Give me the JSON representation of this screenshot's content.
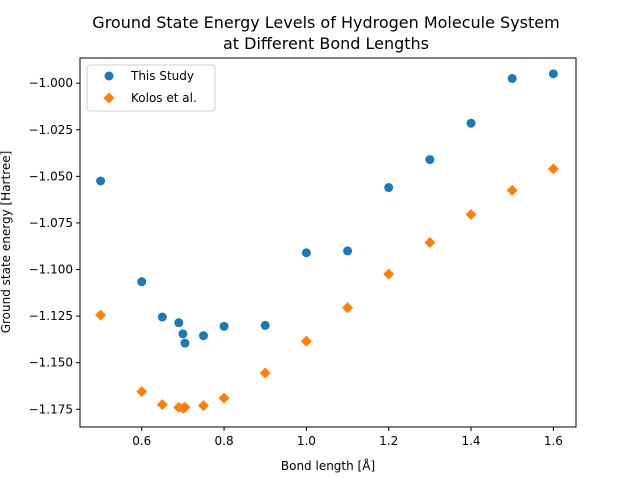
{
  "chart_data": {
    "type": "scatter",
    "title_line1": "Ground State Energy Levels of Hydrogen Molecule System",
    "title_line2": "at Different Bond Lengths",
    "xlabel": "Bond length [Å]",
    "ylabel": "Ground state energy [Hartree]",
    "xlim": [
      0.45,
      1.655
    ],
    "ylim": [
      -1.1845,
      -0.9865
    ],
    "xticks": [
      0.6,
      0.8,
      1.0,
      1.2,
      1.4,
      1.6
    ],
    "xtick_labels": [
      "0.6",
      "0.8",
      "1.0",
      "1.2",
      "1.4",
      "1.6"
    ],
    "yticks": [
      -1.175,
      -1.15,
      -1.125,
      -1.1,
      -1.075,
      -1.05,
      -1.025,
      -1.0
    ],
    "ytick_labels": [
      "−1.175",
      "−1.150",
      "−1.125",
      "−1.100",
      "−1.075",
      "−1.050",
      "−1.025",
      "−1.000"
    ],
    "grid": false,
    "legend_position": "upper-left",
    "series": [
      {
        "name": "This Study",
        "marker": "circle",
        "color": "#1f77b4",
        "x": [
          0.5,
          0.6,
          0.65,
          0.69,
          0.7,
          0.705,
          0.75,
          0.8,
          0.9,
          1.0,
          1.1,
          1.2,
          1.3,
          1.4,
          1.5,
          1.6
        ],
        "y": [
          -1.0525,
          -1.1065,
          -1.1255,
          -1.1285,
          -1.1345,
          -1.1395,
          -1.1355,
          -1.1305,
          -1.13,
          -1.091,
          -1.09,
          -1.056,
          -1.041,
          -1.0215,
          -0.9975,
          -0.995
        ]
      },
      {
        "name": "Kolos et al.",
        "marker": "diamond",
        "color": "#ff7f0e",
        "x": [
          0.5,
          0.6,
          0.65,
          0.69,
          0.7,
          0.705,
          0.75,
          0.8,
          0.9,
          1.0,
          1.1,
          1.2,
          1.3,
          1.4,
          1.5,
          1.6
        ],
        "y": [
          -1.1245,
          -1.1655,
          -1.1725,
          -1.174,
          -1.1745,
          -1.174,
          -1.173,
          -1.169,
          -1.1555,
          -1.1385,
          -1.1205,
          -1.1025,
          -1.0855,
          -1.0705,
          -1.0575,
          -1.046
        ]
      }
    ]
  }
}
